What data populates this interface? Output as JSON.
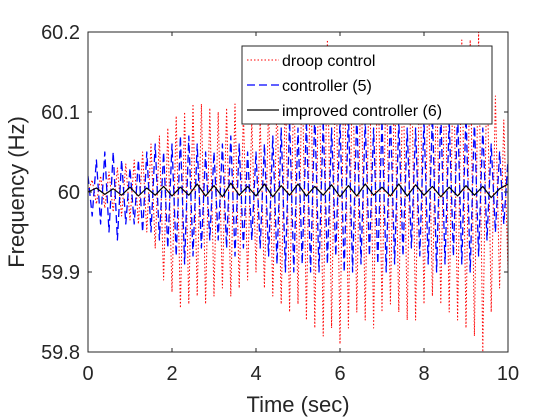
{
  "chart_data": {
    "type": "line",
    "title": "",
    "xlabel": "Time (sec)",
    "ylabel": "Frequency (Hz)",
    "xlim": [
      0,
      10
    ],
    "ylim": [
      59.8,
      60.2
    ],
    "xticks": [
      0,
      2,
      4,
      6,
      8,
      10
    ],
    "xtick_labels": [
      "0",
      "2",
      "4",
      "6",
      "8",
      "10"
    ],
    "yticks": [
      59.8,
      59.9,
      60,
      60.1,
      60.2
    ],
    "ytick_labels": [
      "59.8",
      "59.9",
      "60",
      "60.1",
      "60.2"
    ],
    "grid": false,
    "legend_position": "top-right",
    "series": [
      {
        "name": "droop control",
        "color": "#ff0000",
        "style": "dotted",
        "x": [
          0,
          0.1,
          0.2,
          0.3,
          0.4,
          0.5,
          0.6,
          0.7,
          0.8,
          0.9,
          1.0,
          1.1,
          1.2,
          1.3,
          1.4,
          1.5,
          1.6,
          1.7,
          1.8,
          1.9,
          2.0,
          2.1,
          2.2,
          2.3,
          2.4,
          2.5,
          2.6,
          2.7,
          2.8,
          2.9,
          3.0,
          3.1,
          3.2,
          3.3,
          3.4,
          3.5,
          3.6,
          3.7,
          3.8,
          3.9,
          4.0,
          4.1,
          4.2,
          4.3,
          4.4,
          4.5,
          4.6,
          4.7,
          4.8,
          4.9,
          5.0,
          5.1,
          5.2,
          5.3,
          5.4,
          5.5,
          5.6,
          5.7,
          5.8,
          5.9,
          6.0,
          6.1,
          6.2,
          6.3,
          6.4,
          6.5,
          6.6,
          6.7,
          6.8,
          6.9,
          7.0,
          7.1,
          7.2,
          7.3,
          7.4,
          7.5,
          7.6,
          7.7,
          7.8,
          7.9,
          8.0,
          8.1,
          8.2,
          8.3,
          8.4,
          8.5,
          8.6,
          8.7,
          8.8,
          8.9,
          9.0,
          9.1,
          9.2,
          9.3,
          9.4,
          9.5,
          9.6,
          9.7,
          9.8,
          9.9,
          10.0
        ],
        "y": [
          60.0,
          60.015,
          59.985,
          60.02,
          59.98,
          60.025,
          59.975,
          60.03,
          59.97,
          60.035,
          59.965,
          60.04,
          59.96,
          60.05,
          59.95,
          60.06,
          59.93,
          60.07,
          59.89,
          60.08,
          59.875,
          60.095,
          59.855,
          60.1,
          59.86,
          60.11,
          59.87,
          60.11,
          59.86,
          60.105,
          59.87,
          60.1,
          59.88,
          60.105,
          59.87,
          60.11,
          59.88,
          60.1,
          59.89,
          60.09,
          59.9,
          60.09,
          59.88,
          60.11,
          59.87,
          60.12,
          59.86,
          60.13,
          59.85,
          60.14,
          59.86,
          60.16,
          59.84,
          60.17,
          59.83,
          60.18,
          59.82,
          60.19,
          59.83,
          60.18,
          59.81,
          60.18,
          59.83,
          60.17,
          59.85,
          60.16,
          59.84,
          60.17,
          59.83,
          60.18,
          59.85,
          60.16,
          59.86,
          60.14,
          59.85,
          60.16,
          59.84,
          60.17,
          59.84,
          60.17,
          59.86,
          60.15,
          59.87,
          60.14,
          59.86,
          60.16,
          59.85,
          60.18,
          59.84,
          60.19,
          59.83,
          60.19,
          59.82,
          60.2,
          59.8,
          60.17,
          59.85,
          60.12,
          59.88,
          60.09,
          59.9
        ]
      },
      {
        "name": "controller (5)",
        "color": "#0000ff",
        "style": "dashed",
        "x": [
          0,
          0.1,
          0.2,
          0.3,
          0.4,
          0.5,
          0.6,
          0.7,
          0.8,
          0.9,
          1.0,
          1.1,
          1.2,
          1.3,
          1.4,
          1.5,
          1.6,
          1.7,
          1.8,
          1.9,
          2.0,
          2.1,
          2.2,
          2.3,
          2.4,
          2.5,
          2.6,
          2.7,
          2.8,
          2.9,
          3.0,
          3.1,
          3.2,
          3.3,
          3.4,
          3.5,
          3.6,
          3.7,
          3.8,
          3.9,
          4.0,
          4.1,
          4.2,
          4.3,
          4.4,
          4.5,
          4.6,
          4.7,
          4.8,
          4.9,
          5.0,
          5.1,
          5.2,
          5.3,
          5.4,
          5.5,
          5.6,
          5.7,
          5.8,
          5.9,
          6.0,
          6.1,
          6.2,
          6.3,
          6.4,
          6.5,
          6.6,
          6.7,
          6.8,
          6.9,
          7.0,
          7.1,
          7.2,
          7.3,
          7.4,
          7.5,
          7.6,
          7.7,
          7.8,
          7.9,
          8.0,
          8.1,
          8.2,
          8.3,
          8.4,
          8.5,
          8.6,
          8.7,
          8.8,
          8.9,
          9.0,
          9.1,
          9.2,
          9.3,
          9.4,
          9.5,
          9.6,
          9.7,
          9.8,
          9.9,
          10.0
        ],
        "y": [
          60.02,
          59.97,
          60.04,
          59.96,
          60.05,
          59.95,
          60.05,
          59.94,
          60.04,
          59.96,
          60.03,
          59.96,
          60.04,
          59.95,
          60.05,
          59.95,
          60.06,
          59.94,
          60.05,
          59.93,
          60.06,
          59.92,
          60.07,
          59.91,
          60.07,
          59.92,
          60.06,
          59.93,
          60.05,
          59.94,
          60.05,
          59.94,
          60.06,
          59.93,
          60.07,
          59.92,
          60.06,
          59.93,
          60.05,
          59.94,
          60.05,
          59.93,
          60.06,
          59.92,
          60.07,
          59.91,
          60.08,
          59.9,
          60.09,
          59.9,
          60.08,
          59.91,
          60.09,
          59.9,
          60.1,
          59.9,
          60.09,
          59.91,
          60.08,
          59.92,
          60.09,
          59.9,
          60.1,
          59.9,
          60.1,
          59.91,
          60.09,
          59.92,
          60.08,
          59.91,
          60.09,
          59.9,
          60.1,
          59.91,
          60.09,
          59.92,
          60.08,
          59.93,
          60.08,
          59.92,
          60.09,
          59.91,
          60.1,
          59.9,
          60.1,
          59.91,
          60.09,
          59.92,
          60.1,
          59.91,
          60.1,
          59.9,
          60.09,
          59.92,
          60.08,
          59.94,
          60.06,
          59.95,
          60.05,
          59.96,
          60.04
        ]
      },
      {
        "name": "improved controller (6)",
        "color": "#000000",
        "style": "solid",
        "x": [
          0,
          0.2,
          0.4,
          0.6,
          0.8,
          1.0,
          1.2,
          1.4,
          1.6,
          1.8,
          2.0,
          2.2,
          2.4,
          2.6,
          2.8,
          3.0,
          3.2,
          3.4,
          3.6,
          3.8,
          4.0,
          4.2,
          4.4,
          4.6,
          4.8,
          5.0,
          5.2,
          5.4,
          5.6,
          5.8,
          6.0,
          6.2,
          6.4,
          6.6,
          6.8,
          7.0,
          7.2,
          7.4,
          7.6,
          7.8,
          8.0,
          8.2,
          8.4,
          8.6,
          8.8,
          9.0,
          9.2,
          9.4,
          9.6,
          9.8,
          10.0
        ],
        "y": [
          60.0,
          60.005,
          59.997,
          60.004,
          59.996,
          60.006,
          59.995,
          60.005,
          59.996,
          60.007,
          59.995,
          60.006,
          59.996,
          60.01,
          59.995,
          60.008,
          59.994,
          60.011,
          59.996,
          60.007,
          59.995,
          60.01,
          59.994,
          60.008,
          59.996,
          60.01,
          59.995,
          60.007,
          59.996,
          60.009,
          59.994,
          60.008,
          59.995,
          60.01,
          59.996,
          60.006,
          59.995,
          60.01,
          59.995,
          60.009,
          59.996,
          60.007,
          59.994,
          60.006,
          59.995,
          60.008,
          59.996,
          60.007,
          59.993,
          60.004,
          60.01
        ]
      }
    ]
  }
}
